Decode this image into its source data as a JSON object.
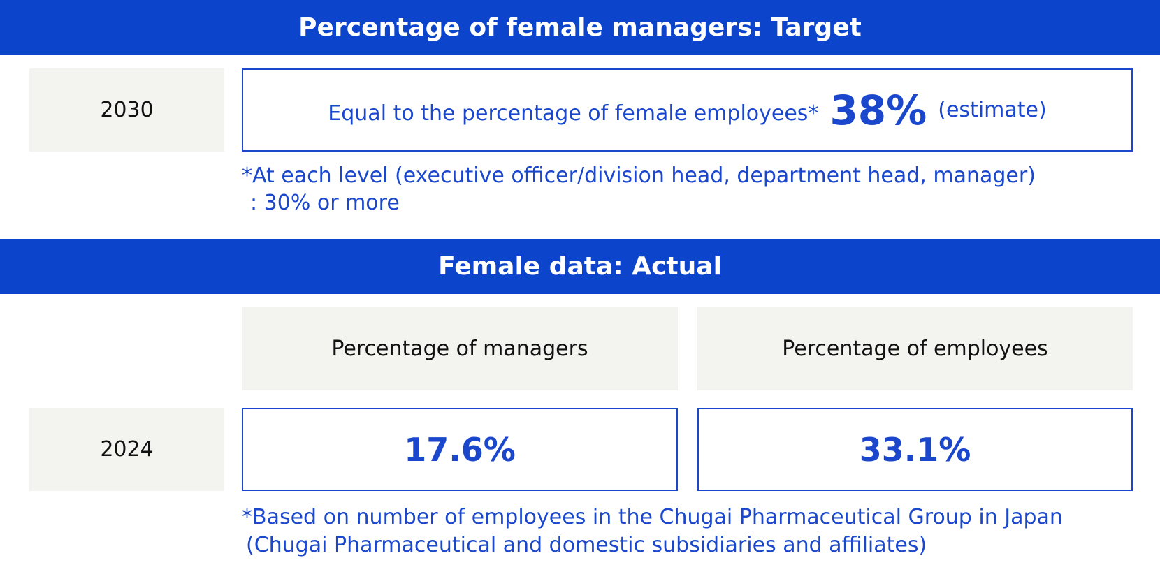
{
  "target": {
    "title": "Percentage of female managers: Target",
    "year": "2030",
    "text": "Equal to the percentage of female employees*",
    "value": "38%",
    "qualifier": "(estimate)",
    "note": [
      "*At each level (executive officer/division head, department head, manager)",
      ": 30% or more"
    ]
  },
  "actual": {
    "title": "Female data: Actual",
    "columns": [
      "Percentage of managers",
      "Percentage of employees"
    ],
    "year": "2024",
    "values": [
      "17.6%",
      "33.1%"
    ],
    "note": [
      "*Based on number of employees in the Chugai Pharmaceutical Group in Japan",
      "(Chugai Pharmaceutical and domestic subsidiaries and affiliates)"
    ]
  }
}
